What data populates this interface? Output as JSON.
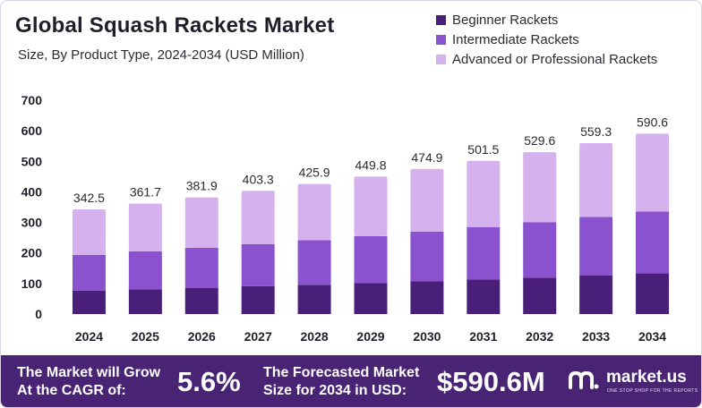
{
  "chart_data": {
    "type": "bar",
    "stacked": true,
    "title": "Global Squash Rackets Market",
    "subtitle": "Size, By Product Type, 2024-2034 (USD Million)",
    "categories": [
      "2024",
      "2025",
      "2026",
      "2027",
      "2028",
      "2029",
      "2030",
      "2031",
      "2032",
      "2033",
      "2034"
    ],
    "totals": [
      "342.5",
      "361.7",
      "381.9",
      "403.3",
      "425.9",
      "449.8",
      "474.9",
      "501.5",
      "529.6",
      "559.3",
      "590.6"
    ],
    "series": [
      {
        "name": "Beginner Rackets",
        "color": "#4a1f7a",
        "values": [
          77,
          81,
          86,
          91,
          96,
          101,
          107,
          113,
          119,
          126,
          133
        ]
      },
      {
        "name": "Intermediate Rackets",
        "color": "#8b52cf",
        "values": [
          117,
          124,
          131,
          138,
          146,
          154,
          163,
          172,
          182,
          192,
          203
        ]
      },
      {
        "name": "Advanced or Professional Rackets",
        "color": "#d5b1ee",
        "values": [
          148.5,
          156.7,
          164.9,
          174.3,
          183.9,
          194.8,
          204.9,
          216.5,
          228.6,
          241.3,
          254.6
        ]
      }
    ],
    "yticks": [
      "0",
      "100",
      "200",
      "300",
      "400",
      "500",
      "600",
      "700"
    ],
    "ylim": [
      0,
      700
    ],
    "legend_position": "top-right"
  },
  "footer": {
    "cagr_line1": "The Market will Grow",
    "cagr_line2": "At the CAGR of:",
    "cagr_value": "5.6%",
    "forecast_line1": "The Forecasted Market",
    "forecast_line2": "Size for 2034 in USD:",
    "forecast_value": "$590.6M"
  },
  "brand": {
    "name": "market.us",
    "tagline": "ONE STOP SHOP FOR THE REPORTS"
  }
}
